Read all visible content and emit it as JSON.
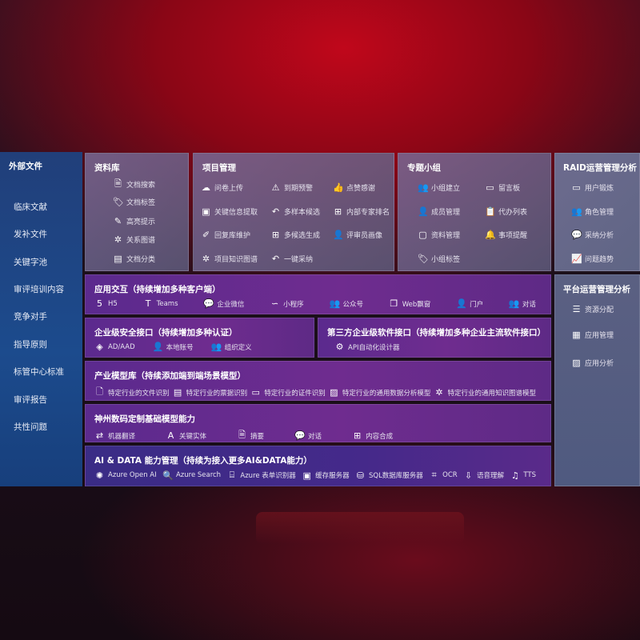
{
  "sidebar": {
    "title": "外部文件",
    "items": [
      "临床文献",
      "发补文件",
      "关键字池",
      "审评培训内容",
      "竞争对手",
      "指导原则",
      "标管中心标准",
      "审评报告",
      "共性问题"
    ]
  },
  "panels": {
    "library": {
      "title": "资料库",
      "items": [
        {
          "icon": "doc-search",
          "label": "文档搜索"
        },
        {
          "icon": "tag",
          "label": "文档标签"
        },
        {
          "icon": "pen",
          "label": "高亮提示"
        },
        {
          "icon": "graph",
          "label": "关系图谱"
        },
        {
          "icon": "doc-classify",
          "label": "文档分类"
        }
      ]
    },
    "project": {
      "title": "项目管理",
      "items": [
        {
          "icon": "cloud-upload",
          "label": "问卷上传"
        },
        {
          "icon": "alarm",
          "label": "到期预警"
        },
        {
          "icon": "thumbs-up",
          "label": "点赞感谢"
        },
        {
          "icon": "extract",
          "label": "关键信息提取"
        },
        {
          "icon": "reply",
          "label": "多样本候选"
        },
        {
          "icon": "rank",
          "label": "内部专家排名"
        },
        {
          "icon": "edit",
          "label": "回复库维护"
        },
        {
          "icon": "puzzle",
          "label": "多候选生成"
        },
        {
          "icon": "user",
          "label": "评审员画像"
        },
        {
          "icon": "graph",
          "label": "项目知识图谱"
        },
        {
          "icon": "reply",
          "label": "一键采纳"
        }
      ]
    },
    "group": {
      "title": "专题小组",
      "items": [
        {
          "icon": "users",
          "label": "小组建立"
        },
        {
          "icon": "bbs",
          "label": "留言板"
        },
        {
          "icon": "user-add",
          "label": "成员管理"
        },
        {
          "icon": "clipboard",
          "label": "代办列表"
        },
        {
          "icon": "folder",
          "label": "资料管理"
        },
        {
          "icon": "bell",
          "label": "事项提醒"
        },
        {
          "icon": "tag",
          "label": "小组标签"
        }
      ]
    },
    "raid": {
      "title": "RAID运营管理分析",
      "items": [
        {
          "icon": "id-card",
          "label": "用户锻炼"
        },
        {
          "icon": "users",
          "label": "角色管理"
        },
        {
          "icon": "qa",
          "label": "采纳分析"
        },
        {
          "icon": "trend",
          "label": "问题趋势"
        }
      ]
    },
    "platform": {
      "title": "平台运营管理分析",
      "items": [
        {
          "icon": "list",
          "label": "资源分配"
        },
        {
          "icon": "apps",
          "label": "应用管理"
        },
        {
          "icon": "chart",
          "label": "应用分析"
        }
      ]
    },
    "interaction": {
      "title": "应用交互（持续增加多种客户端）",
      "items": [
        {
          "icon": "html5",
          "label": "H5"
        },
        {
          "icon": "teams",
          "label": "Teams"
        },
        {
          "icon": "wechat",
          "label": "企业微信"
        },
        {
          "icon": "miniprogram",
          "label": "小程序"
        },
        {
          "icon": "users",
          "label": "公众号"
        },
        {
          "icon": "window",
          "label": "Web飘窗"
        },
        {
          "icon": "portal",
          "label": "门户"
        },
        {
          "icon": "chat-users",
          "label": "对话"
        }
      ]
    },
    "security": {
      "title": "企业级安全接口（持续增加多种认证）",
      "items": [
        {
          "icon": "ad",
          "label": "AD/AAD"
        },
        {
          "icon": "user-lock",
          "label": "本地账号"
        },
        {
          "icon": "org",
          "label": "组织定义"
        }
      ]
    },
    "thirdparty": {
      "title": "第三方企业级软件接口（持续增加多种企业主流软件接口）",
      "items": [
        {
          "icon": "gear",
          "label": "API自动化设计器"
        }
      ]
    },
    "industry": {
      "title": "产业模型库（持续添加端到端场景模型）",
      "items": [
        {
          "icon": "file",
          "label": "特定行业的文件识别"
        },
        {
          "icon": "receipt",
          "label": "特定行业的票据识别"
        },
        {
          "icon": "id-card",
          "label": "特定行业的证件识别"
        },
        {
          "icon": "chart",
          "label": "特定行业的通用数据分析模型"
        },
        {
          "icon": "graph",
          "label": "特定行业的通用知识图谱模型"
        }
      ]
    },
    "basemodel": {
      "title": "神州数码定制基础模型能力",
      "items": [
        {
          "icon": "translate",
          "label": "机器翻译"
        },
        {
          "icon": "entity",
          "label": "关键实体"
        },
        {
          "icon": "summary",
          "label": "摘要"
        },
        {
          "icon": "chat",
          "label": "对话"
        },
        {
          "icon": "puzzle",
          "label": "内容合成"
        }
      ]
    },
    "aidata": {
      "title": "AI & DATA 能力管理（持续为接入更多AI&DATA能力）",
      "items": [
        {
          "icon": "openai",
          "label": "Azure Open AI"
        },
        {
          "icon": "search-doc",
          "label": "Azure Search"
        },
        {
          "icon": "form",
          "label": "Azure 表单识别器"
        },
        {
          "icon": "cache",
          "label": "缓存服务器"
        },
        {
          "icon": "database",
          "label": "SQL数据库服务器"
        },
        {
          "icon": "ocr",
          "label": "OCR"
        },
        {
          "icon": "speech",
          "label": "语音理解"
        },
        {
          "icon": "tts",
          "label": "TTS"
        }
      ]
    }
  },
  "colors": {
    "sidebar": "#1c4b8d",
    "purple": "#6f2c8f",
    "gray": "#6f6590",
    "aidata": "#3b2a80"
  }
}
